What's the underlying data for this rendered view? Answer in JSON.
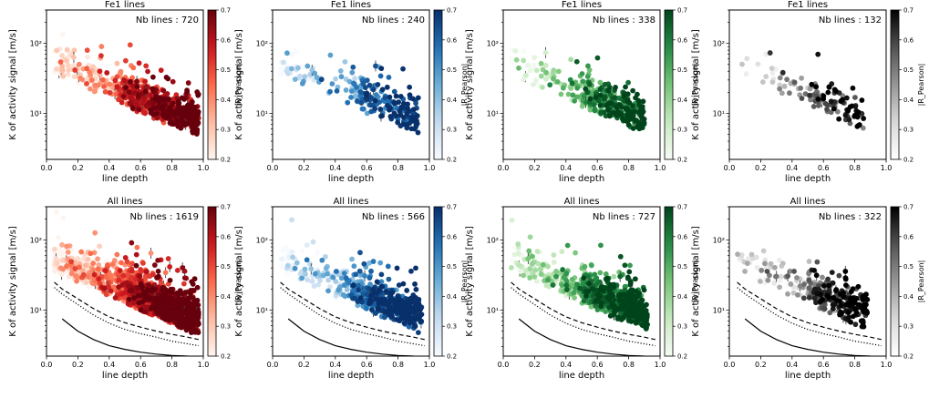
{
  "chart_data": {
    "type": "scatter",
    "layout": "2x4 grid of log-scale scatter panels, each with a colorbar",
    "xlabel": "line depth",
    "ylabel": "K of activity signal [m/s]",
    "colorbar_label": "|R_Pearson|",
    "colorbar_range": [
      0.2,
      0.7
    ],
    "colorbar_ticks": [
      "0.2",
      "0.3",
      "0.4",
      "0.5",
      "0.6",
      "0.7"
    ],
    "xlim": [
      0.0,
      1.0
    ],
    "x_ticks": [
      "0.0",
      "0.2",
      "0.4",
      "0.6",
      "0.8",
      "1.0"
    ],
    "ylim_log": [
      2.2,
      300
    ],
    "y_ticks": [
      {
        "value": 10,
        "label": "10¹"
      },
      {
        "value": 100,
        "label": "10²"
      }
    ],
    "colormaps": {
      "Reds": [
        "#fff5f0",
        "#fcbba1",
        "#fb6a4a",
        "#cb181d",
        "#67000d"
      ],
      "Blues": [
        "#f7fbff",
        "#c6dbef",
        "#6baed6",
        "#2171b5",
        "#08306b"
      ],
      "Greens": [
        "#f7fcf5",
        "#c7e9c0",
        "#74c476",
        "#238b45",
        "#00441b"
      ],
      "Greys": [
        "#ffffff",
        "#d9d9d9",
        "#969696",
        "#525252",
        "#000000"
      ]
    },
    "panels": [
      {
        "title": "Fe1 lines",
        "nb_label": "Nb lines : 720",
        "n": 720,
        "x_max": 0.97,
        "colormap": "Reds",
        "seed": 11,
        "detection_limits": false
      },
      {
        "title": "Fe1 lines",
        "nb_label": "Nb lines : 240",
        "n": 240,
        "x_max": 0.93,
        "colormap": "Blues",
        "seed": 23,
        "detection_limits": false
      },
      {
        "title": "Fe1 lines",
        "nb_label": "Nb lines : 338",
        "n": 338,
        "x_max": 0.9,
        "colormap": "Greens",
        "seed": 37,
        "detection_limits": false
      },
      {
        "title": "Fe1 lines",
        "nb_label": "Nb lines : 132",
        "n": 132,
        "x_max": 0.86,
        "colormap": "Greys",
        "seed": 41,
        "detection_limits": false
      },
      {
        "title": "All lines",
        "nb_label": "Nb lines : 1619",
        "n": 1619,
        "x_max": 0.97,
        "colormap": "Reds",
        "seed": 53,
        "detection_limits": true
      },
      {
        "title": "All lines",
        "nb_label": "Nb lines : 566",
        "n": 566,
        "x_max": 0.95,
        "colormap": "Blues",
        "seed": 67,
        "detection_limits": true
      },
      {
        "title": "All lines",
        "nb_label": "Nb lines : 727",
        "n": 727,
        "x_max": 0.92,
        "colormap": "Greens",
        "seed": 71,
        "detection_limits": true
      },
      {
        "title": "All lines",
        "nb_label": "Nb lines : 322",
        "n": 322,
        "x_max": 0.88,
        "colormap": "Greys",
        "seed": 89,
        "detection_limits": true
      }
    ],
    "detection_limits": [
      {
        "name": "solid limit",
        "style": "solid",
        "points": [
          [
            0.1,
            7.5
          ],
          [
            0.2,
            5.0
          ],
          [
            0.3,
            3.8
          ],
          [
            0.4,
            3.1
          ],
          [
            0.5,
            2.75
          ],
          [
            0.6,
            2.5
          ],
          [
            0.7,
            2.35
          ],
          [
            0.8,
            2.25
          ],
          [
            0.9,
            2.2
          ]
        ]
      },
      {
        "name": "dotted limit",
        "style": "dotted",
        "points": [
          [
            0.05,
            21
          ],
          [
            0.1,
            17
          ],
          [
            0.2,
            12
          ],
          [
            0.3,
            8.5
          ],
          [
            0.4,
            6.5
          ],
          [
            0.5,
            5.3
          ],
          [
            0.6,
            4.6
          ],
          [
            0.7,
            4.1
          ],
          [
            0.8,
            3.6
          ],
          [
            0.9,
            3.3
          ],
          [
            0.97,
            3.1
          ]
        ]
      },
      {
        "name": "dashed limit",
        "style": "dashed",
        "points": [
          [
            0.05,
            25
          ],
          [
            0.1,
            20
          ],
          [
            0.2,
            14.5
          ],
          [
            0.3,
            10.5
          ],
          [
            0.4,
            8.0
          ],
          [
            0.5,
            6.6
          ],
          [
            0.6,
            5.7
          ],
          [
            0.7,
            5.0
          ],
          [
            0.8,
            4.5
          ],
          [
            0.9,
            4.1
          ],
          [
            0.97,
            3.8
          ]
        ]
      }
    ]
  }
}
